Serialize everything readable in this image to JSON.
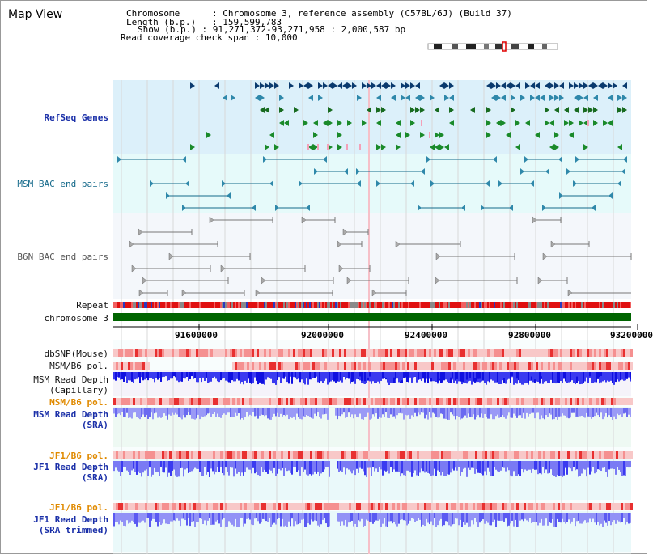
{
  "title": "Map View",
  "info": {
    "chromosome_label": "Chromosome",
    "chromosome_value": "Chromosome 3, reference assembly (C57BL/6J) (Build 37)",
    "length_label": "Length (b.p.)",
    "length_value": "159,599,783",
    "show_label": "Show (b.p.)",
    "show_value": "91,271,372-93,271,958 : 2,000,587 bp",
    "coverage_label": "Read coverage check span",
    "coverage_value": "10,000"
  },
  "tracks": {
    "refseq": "RefSeq Genes",
    "msm_bac": "MSM BAC end pairs",
    "b6n_bac": "B6N BAC end pairs",
    "repeat": "Repeat",
    "chromosome": "chromosome 3",
    "dbsnp": "dbSNP(Mouse)",
    "msm_b6_pol": "MSM/B6 pol.",
    "msm_read_depth_cap_1": "MSM Read Depth",
    "msm_read_depth_cap_2": "(Capillary)",
    "msm_b6_pol_sra": "MSM/B6 pol.",
    "msm_read_depth_sra_1": "MSM Read Depth",
    "msm_read_depth_sra_2": "(SRA)",
    "jf1_b6_pol": "JF1/B6 pol.",
    "jf1_read_depth_1": "JF1 Read Depth",
    "jf1_read_depth_2": "(SRA)",
    "jf1_b6_pol_2": "JF1/B6 pol.",
    "jf1_read_depth_trim_1": "JF1 Read Depth",
    "jf1_read_depth_trim_2": "(SRA trimmed)"
  },
  "axis_ticks": [
    "91600000",
    "92000000",
    "92400000",
    "92800000",
    "93200000"
  ],
  "colors": {
    "refseq_bg": "#dcf0fa",
    "bac_bg": "#e6fafa",
    "b6n_bg": "#f4f7fb",
    "chromosome_bar": "#006400",
    "repeat_red": "#e01010",
    "snp_pink": "#f4a0a0",
    "depth_blue": "#3a3af0",
    "depth_light": "#8c8cf4",
    "label_blue": "#1a2fa8",
    "label_orange": "#e08a00"
  }
}
